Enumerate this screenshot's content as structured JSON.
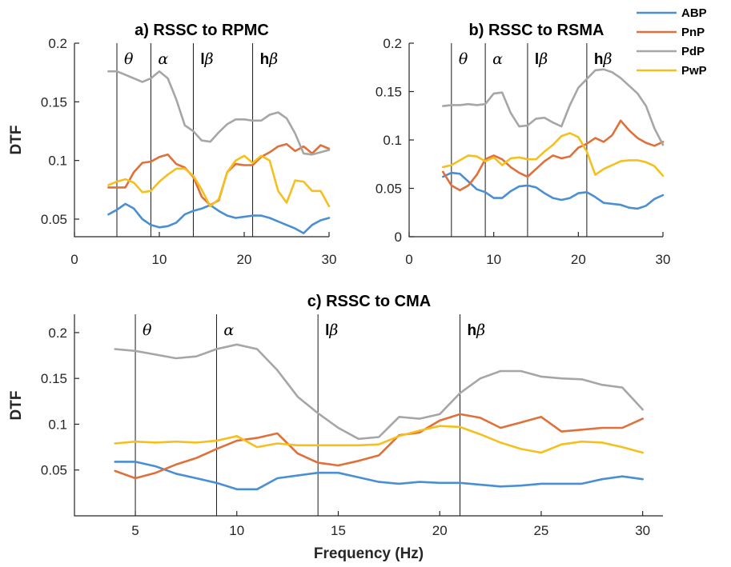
{
  "figure": {
    "legend": [
      {
        "name": "ABP",
        "color": "#4a8fd4"
      },
      {
        "name": "PnP",
        "color": "#e0703a"
      },
      {
        "name": "PdP",
        "color": "#a6a6a6"
      },
      {
        "name": "PwP",
        "color": "#f5c01e"
      }
    ],
    "bands": [
      {
        "label": "θ",
        "prefix": "",
        "x": 5
      },
      {
        "label": "α",
        "prefix": "",
        "x": 9
      },
      {
        "label": "β",
        "prefix": "l",
        "x": 14
      },
      {
        "label": "β",
        "prefix": "h",
        "x": 21
      }
    ]
  },
  "chart_data": [
    {
      "id": "a",
      "type": "line",
      "title": "a) RSSC to RPMC",
      "xlabel": "",
      "ylabel": "DTF",
      "xlim": [
        0,
        30
      ],
      "ylim": [
        0.035,
        0.2
      ],
      "xticks": [
        "0",
        "10",
        "20",
        "30"
      ],
      "xtick_values": [
        0,
        10,
        20,
        30
      ],
      "yticks": [
        "0.05",
        "0.1",
        "0.15",
        "0.2"
      ],
      "ytick_values": [
        0.05,
        0.1,
        0.15,
        0.2
      ],
      "x": [
        4,
        5,
        6,
        7,
        8,
        9,
        10,
        11,
        12,
        13,
        14,
        15,
        16,
        17,
        18,
        19,
        20,
        21,
        22,
        23,
        24,
        25,
        26,
        27,
        28,
        29,
        30
      ],
      "series": [
        {
          "name": "ABP",
          "values": [
            0.054,
            0.058,
            0.063,
            0.059,
            0.05,
            0.045,
            0.043,
            0.044,
            0.047,
            0.054,
            0.057,
            0.059,
            0.062,
            0.057,
            0.053,
            0.051,
            0.052,
            0.053,
            0.053,
            0.051,
            0.048,
            0.045,
            0.042,
            0.038,
            0.045,
            0.049,
            0.051
          ]
        },
        {
          "name": "PnP",
          "values": [
            0.077,
            0.077,
            0.077,
            0.09,
            0.098,
            0.099,
            0.103,
            0.105,
            0.097,
            0.094,
            0.086,
            0.069,
            0.062,
            0.066,
            0.09,
            0.097,
            0.096,
            0.096,
            0.103,
            0.107,
            0.112,
            0.114,
            0.108,
            0.112,
            0.106,
            0.113,
            0.11
          ]
        },
        {
          "name": "PdP",
          "values": [
            0.176,
            0.176,
            0.173,
            0.17,
            0.167,
            0.17,
            0.176,
            0.17,
            0.152,
            0.13,
            0.125,
            0.117,
            0.116,
            0.124,
            0.131,
            0.135,
            0.135,
            0.134,
            0.134,
            0.139,
            0.141,
            0.136,
            0.123,
            0.106,
            0.105,
            0.107,
            0.109
          ]
        },
        {
          "name": "PwP",
          "values": [
            0.079,
            0.082,
            0.084,
            0.081,
            0.073,
            0.074,
            0.082,
            0.088,
            0.093,
            0.093,
            0.087,
            0.075,
            0.061,
            0.067,
            0.09,
            0.1,
            0.104,
            0.098,
            0.104,
            0.1,
            0.074,
            0.064,
            0.083,
            0.082,
            0.074,
            0.074,
            0.061
          ]
        }
      ]
    },
    {
      "id": "b",
      "type": "line",
      "title": "b) RSSC to RSMA",
      "xlabel": "",
      "ylabel": "",
      "xlim": [
        0,
        30
      ],
      "ylim": [
        0,
        0.2
      ],
      "xticks": [
        "0",
        "10",
        "20",
        "30"
      ],
      "xtick_values": [
        0,
        10,
        20,
        30
      ],
      "yticks": [
        "0",
        "0.05",
        "0.1",
        "0.15",
        "0.2"
      ],
      "ytick_values": [
        0,
        0.05,
        0.1,
        0.15,
        0.2
      ],
      "x": [
        4,
        5,
        6,
        7,
        8,
        9,
        10,
        11,
        12,
        13,
        14,
        15,
        16,
        17,
        18,
        19,
        20,
        21,
        22,
        23,
        24,
        25,
        26,
        27,
        28,
        29,
        30
      ],
      "series": [
        {
          "name": "ABP",
          "values": [
            0.062,
            0.066,
            0.065,
            0.057,
            0.049,
            0.046,
            0.04,
            0.04,
            0.047,
            0.052,
            0.053,
            0.051,
            0.045,
            0.04,
            0.038,
            0.04,
            0.045,
            0.046,
            0.041,
            0.035,
            0.034,
            0.033,
            0.03,
            0.029,
            0.032,
            0.039,
            0.043
          ]
        },
        {
          "name": "PnP",
          "values": [
            0.067,
            0.053,
            0.048,
            0.053,
            0.064,
            0.08,
            0.084,
            0.08,
            0.072,
            0.066,
            0.062,
            0.07,
            0.078,
            0.084,
            0.081,
            0.083,
            0.092,
            0.096,
            0.102,
            0.098,
            0.105,
            0.12,
            0.11,
            0.102,
            0.097,
            0.094,
            0.098
          ]
        },
        {
          "name": "PdP",
          "values": [
            0.135,
            0.136,
            0.136,
            0.137,
            0.136,
            0.137,
            0.148,
            0.149,
            0.128,
            0.114,
            0.115,
            0.122,
            0.123,
            0.118,
            0.114,
            0.136,
            0.154,
            0.163,
            0.172,
            0.173,
            0.17,
            0.164,
            0.156,
            0.148,
            0.135,
            0.112,
            0.095
          ]
        },
        {
          "name": "PwP",
          "values": [
            0.072,
            0.074,
            0.079,
            0.084,
            0.083,
            0.078,
            0.082,
            0.074,
            0.081,
            0.082,
            0.08,
            0.08,
            0.088,
            0.095,
            0.104,
            0.107,
            0.103,
            0.088,
            0.064,
            0.07,
            0.074,
            0.078,
            0.079,
            0.079,
            0.077,
            0.073,
            0.063
          ]
        }
      ]
    },
    {
      "id": "c",
      "type": "line",
      "title": "c) RSSC to CMA",
      "xlabel": "Frequency (Hz)",
      "ylabel": "DTF",
      "xlim": [
        2,
        31
      ],
      "ylim": [
        0,
        0.22
      ],
      "xticks": [
        "5",
        "10",
        "15",
        "20",
        "25",
        "30"
      ],
      "xtick_values": [
        5,
        10,
        15,
        20,
        25,
        30
      ],
      "yticks": [
        "0.05",
        "0.1",
        "0.15",
        "0.2"
      ],
      "ytick_values": [
        0.05,
        0.1,
        0.15,
        0.2
      ],
      "x": [
        4,
        5,
        6,
        7,
        8,
        9,
        10,
        11,
        12,
        13,
        14,
        15,
        16,
        17,
        18,
        19,
        20,
        21,
        22,
        23,
        24,
        25,
        26,
        27,
        28,
        29,
        30
      ],
      "series": [
        {
          "name": "ABP",
          "values": [
            0.059,
            0.059,
            0.054,
            0.046,
            0.041,
            0.036,
            0.029,
            0.029,
            0.041,
            0.044,
            0.047,
            0.047,
            0.042,
            0.037,
            0.035,
            0.037,
            0.036,
            0.036,
            0.034,
            0.032,
            0.033,
            0.035,
            0.035,
            0.035,
            0.04,
            0.043,
            0.04
          ]
        },
        {
          "name": "PnP",
          "values": [
            0.049,
            0.041,
            0.047,
            0.056,
            0.063,
            0.073,
            0.082,
            0.085,
            0.09,
            0.068,
            0.058,
            0.055,
            0.06,
            0.066,
            0.088,
            0.091,
            0.104,
            0.111,
            0.107,
            0.096,
            0.102,
            0.108,
            0.092,
            0.094,
            0.096,
            0.096,
            0.106
          ]
        },
        {
          "name": "PdP",
          "values": [
            0.182,
            0.18,
            0.176,
            0.172,
            0.174,
            0.182,
            0.187,
            0.182,
            0.159,
            0.13,
            0.112,
            0.096,
            0.084,
            0.086,
            0.108,
            0.106,
            0.111,
            0.134,
            0.15,
            0.158,
            0.158,
            0.152,
            0.15,
            0.149,
            0.143,
            0.14,
            0.116
          ]
        },
        {
          "name": "PwP",
          "values": [
            0.079,
            0.081,
            0.08,
            0.081,
            0.08,
            0.082,
            0.087,
            0.075,
            0.079,
            0.077,
            0.077,
            0.077,
            0.077,
            0.078,
            0.087,
            0.093,
            0.098,
            0.097,
            0.089,
            0.08,
            0.073,
            0.069,
            0.078,
            0.081,
            0.08,
            0.075,
            0.069
          ]
        }
      ]
    }
  ]
}
